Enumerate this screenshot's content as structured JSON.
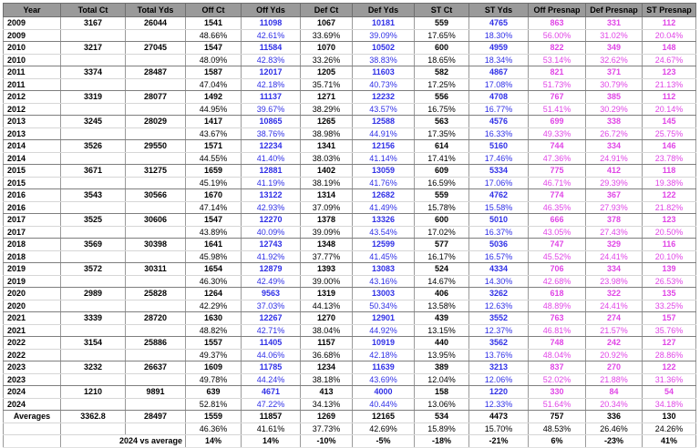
{
  "headers": [
    "Year",
    "Total Ct",
    "Total Yds",
    "Off Ct",
    "Off Yds",
    "Def Ct",
    "Def Yds",
    "ST Ct",
    "ST Yds",
    "Off Presnap",
    "Def Presnap",
    "ST Presnap"
  ],
  "years": [
    {
      "year": "2009",
      "total_ct": "3167",
      "total_yds": "26044",
      "off_ct": "1541",
      "off_yds": "11098",
      "def_ct": "1067",
      "def_yds": "10181",
      "st_ct": "559",
      "st_yds": "4765",
      "off_presnap": "863",
      "def_presnap": "331",
      "st_presnap": "112",
      "p_off_ct": "48.66%",
      "p_off_yds": "42.61%",
      "p_def_ct": "33.69%",
      "p_def_yds": "39.09%",
      "p_st_ct": "17.65%",
      "p_st_yds": "18.30%",
      "p_off_presnap": "56.00%",
      "p_def_presnap": "31.02%",
      "p_st_presnap": "20.04%"
    },
    {
      "year": "2010",
      "total_ct": "3217",
      "total_yds": "27045",
      "off_ct": "1547",
      "off_yds": "11584",
      "def_ct": "1070",
      "def_yds": "10502",
      "st_ct": "600",
      "st_yds": "4959",
      "off_presnap": "822",
      "def_presnap": "349",
      "st_presnap": "148",
      "p_off_ct": "48.09%",
      "p_off_yds": "42.83%",
      "p_def_ct": "33.26%",
      "p_def_yds": "38.83%",
      "p_st_ct": "18.65%",
      "p_st_yds": "18.34%",
      "p_off_presnap": "53.14%",
      "p_def_presnap": "32.62%",
      "p_st_presnap": "24.67%"
    },
    {
      "year": "2011",
      "total_ct": "3374",
      "total_yds": "28487",
      "off_ct": "1587",
      "off_yds": "12017",
      "def_ct": "1205",
      "def_yds": "11603",
      "st_ct": "582",
      "st_yds": "4867",
      "off_presnap": "821",
      "def_presnap": "371",
      "st_presnap": "123",
      "p_off_ct": "47.04%",
      "p_off_yds": "42.18%",
      "p_def_ct": "35.71%",
      "p_def_yds": "40.73%",
      "p_st_ct": "17.25%",
      "p_st_yds": "17.08%",
      "p_off_presnap": "51.73%",
      "p_def_presnap": "30.79%",
      "p_st_presnap": "21.13%"
    },
    {
      "year": "2012",
      "total_ct": "3319",
      "total_yds": "28077",
      "off_ct": "1492",
      "off_yds": "11137",
      "def_ct": "1271",
      "def_yds": "12232",
      "st_ct": "556",
      "st_yds": "4708",
      "off_presnap": "767",
      "def_presnap": "385",
      "st_presnap": "112",
      "p_off_ct": "44.95%",
      "p_off_yds": "39.67%",
      "p_def_ct": "38.29%",
      "p_def_yds": "43.57%",
      "p_st_ct": "16.75%",
      "p_st_yds": "16.77%",
      "p_off_presnap": "51.41%",
      "p_def_presnap": "30.29%",
      "p_st_presnap": "20.14%"
    },
    {
      "year": "2013",
      "total_ct": "3245",
      "total_yds": "28029",
      "off_ct": "1417",
      "off_yds": "10865",
      "def_ct": "1265",
      "def_yds": "12588",
      "st_ct": "563",
      "st_yds": "4576",
      "off_presnap": "699",
      "def_presnap": "338",
      "st_presnap": "145",
      "p_off_ct": "43.67%",
      "p_off_yds": "38.76%",
      "p_def_ct": "38.98%",
      "p_def_yds": "44.91%",
      "p_st_ct": "17.35%",
      "p_st_yds": "16.33%",
      "p_off_presnap": "49.33%",
      "p_def_presnap": "26.72%",
      "p_st_presnap": "25.75%"
    },
    {
      "year": "2014",
      "total_ct": "3526",
      "total_yds": "29550",
      "off_ct": "1571",
      "off_yds": "12234",
      "def_ct": "1341",
      "def_yds": "12156",
      "st_ct": "614",
      "st_yds": "5160",
      "off_presnap": "744",
      "def_presnap": "334",
      "st_presnap": "146",
      "p_off_ct": "44.55%",
      "p_off_yds": "41.40%",
      "p_def_ct": "38.03%",
      "p_def_yds": "41.14%",
      "p_st_ct": "17.41%",
      "p_st_yds": "17.46%",
      "p_off_presnap": "47.36%",
      "p_def_presnap": "24.91%",
      "p_st_presnap": "23.78%"
    },
    {
      "year": "2015",
      "total_ct": "3671",
      "total_yds": "31275",
      "off_ct": "1659",
      "off_yds": "12881",
      "def_ct": "1402",
      "def_yds": "13059",
      "st_ct": "609",
      "st_yds": "5334",
      "off_presnap": "775",
      "def_presnap": "412",
      "st_presnap": "118",
      "p_off_ct": "45.19%",
      "p_off_yds": "41.19%",
      "p_def_ct": "38.19%",
      "p_def_yds": "41.76%",
      "p_st_ct": "16.59%",
      "p_st_yds": "17.06%",
      "p_off_presnap": "46.71%",
      "p_def_presnap": "29.39%",
      "p_st_presnap": "19.38%"
    },
    {
      "year": "2016",
      "total_ct": "3543",
      "total_yds": "30566",
      "off_ct": "1670",
      "off_yds": "13122",
      "def_ct": "1314",
      "def_yds": "12682",
      "st_ct": "559",
      "st_yds": "4762",
      "off_presnap": "774",
      "def_presnap": "367",
      "st_presnap": "122",
      "p_off_ct": "47.14%",
      "p_off_yds": "42.93%",
      "p_def_ct": "37.09%",
      "p_def_yds": "41.49%",
      "p_st_ct": "15.78%",
      "p_st_yds": "15.58%",
      "p_off_presnap": "46.35%",
      "p_def_presnap": "27.93%",
      "p_st_presnap": "21.82%"
    },
    {
      "year": "2017",
      "total_ct": "3525",
      "total_yds": "30606",
      "off_ct": "1547",
      "off_yds": "12270",
      "def_ct": "1378",
      "def_yds": "13326",
      "st_ct": "600",
      "st_yds": "5010",
      "off_presnap": "666",
      "def_presnap": "378",
      "st_presnap": "123",
      "p_off_ct": "43.89%",
      "p_off_yds": "40.09%",
      "p_def_ct": "39.09%",
      "p_def_yds": "43.54%",
      "p_st_ct": "17.02%",
      "p_st_yds": "16.37%",
      "p_off_presnap": "43.05%",
      "p_def_presnap": "27.43%",
      "p_st_presnap": "20.50%"
    },
    {
      "year": "2018",
      "total_ct": "3569",
      "total_yds": "30398",
      "off_ct": "1641",
      "off_yds": "12743",
      "def_ct": "1348",
      "def_yds": "12599",
      "st_ct": "577",
      "st_yds": "5036",
      "off_presnap": "747",
      "def_presnap": "329",
      "st_presnap": "116",
      "p_off_ct": "45.98%",
      "p_off_yds": "41.92%",
      "p_def_ct": "37.77%",
      "p_def_yds": "41.45%",
      "p_st_ct": "16.17%",
      "p_st_yds": "16.57%",
      "p_off_presnap": "45.52%",
      "p_def_presnap": "24.41%",
      "p_st_presnap": "20.10%"
    },
    {
      "year": "2019",
      "total_ct": "3572",
      "total_yds": "30311",
      "off_ct": "1654",
      "off_yds": "12879",
      "def_ct": "1393",
      "def_yds": "13083",
      "st_ct": "524",
      "st_yds": "4334",
      "off_presnap": "706",
      "def_presnap": "334",
      "st_presnap": "139",
      "p_off_ct": "46.30%",
      "p_off_yds": "42.49%",
      "p_def_ct": "39.00%",
      "p_def_yds": "43.16%",
      "p_st_ct": "14.67%",
      "p_st_yds": "14.30%",
      "p_off_presnap": "42.68%",
      "p_def_presnap": "23.98%",
      "p_st_presnap": "26.53%"
    },
    {
      "year": "2020",
      "total_ct": "2989",
      "total_yds": "25828",
      "off_ct": "1264",
      "off_yds": "9563",
      "def_ct": "1319",
      "def_yds": "13003",
      "st_ct": "406",
      "st_yds": "3262",
      "off_presnap": "618",
      "def_presnap": "322",
      "st_presnap": "135",
      "p_off_ct": "42.29%",
      "p_off_yds": "37.03%",
      "p_def_ct": "44.13%",
      "p_def_yds": "50.34%",
      "p_st_ct": "13.58%",
      "p_st_yds": "12.63%",
      "p_off_presnap": "48.89%",
      "p_def_presnap": "24.41%",
      "p_st_presnap": "33.25%"
    },
    {
      "year": "2021",
      "total_ct": "3339",
      "total_yds": "28720",
      "off_ct": "1630",
      "off_yds": "12267",
      "def_ct": "1270",
      "def_yds": "12901",
      "st_ct": "439",
      "st_yds": "3552",
      "off_presnap": "763",
      "def_presnap": "274",
      "st_presnap": "157",
      "p_off_ct": "48.82%",
      "p_off_yds": "42.71%",
      "p_def_ct": "38.04%",
      "p_def_yds": "44.92%",
      "p_st_ct": "13.15%",
      "p_st_yds": "12.37%",
      "p_off_presnap": "46.81%",
      "p_def_presnap": "21.57%",
      "p_st_presnap": "35.76%"
    },
    {
      "year": "2022",
      "total_ct": "3154",
      "total_yds": "25886",
      "off_ct": "1557",
      "off_yds": "11405",
      "def_ct": "1157",
      "def_yds": "10919",
      "st_ct": "440",
      "st_yds": "3562",
      "off_presnap": "748",
      "def_presnap": "242",
      "st_presnap": "127",
      "p_off_ct": "49.37%",
      "p_off_yds": "44.06%",
      "p_def_ct": "36.68%",
      "p_def_yds": "42.18%",
      "p_st_ct": "13.95%",
      "p_st_yds": "13.76%",
      "p_off_presnap": "48.04%",
      "p_def_presnap": "20.92%",
      "p_st_presnap": "28.86%"
    },
    {
      "year": "2023",
      "total_ct": "3232",
      "total_yds": "26637",
      "off_ct": "1609",
      "off_yds": "11785",
      "def_ct": "1234",
      "def_yds": "11639",
      "st_ct": "389",
      "st_yds": "3213",
      "off_presnap": "837",
      "def_presnap": "270",
      "st_presnap": "122",
      "p_off_ct": "49.78%",
      "p_off_yds": "44.24%",
      "p_def_ct": "38.18%",
      "p_def_yds": "43.69%",
      "p_st_ct": "12.04%",
      "p_st_yds": "12.06%",
      "p_off_presnap": "52.02%",
      "p_def_presnap": "21.88%",
      "p_st_presnap": "31.36%"
    },
    {
      "year": "2024",
      "total_ct": "1210",
      "total_yds": "9891",
      "off_ct": "639",
      "off_yds": "4671",
      "def_ct": "413",
      "def_yds": "4000",
      "st_ct": "158",
      "st_yds": "1220",
      "off_presnap": "330",
      "def_presnap": "84",
      "st_presnap": "54",
      "p_off_ct": "52.81%",
      "p_off_yds": "47.22%",
      "p_def_ct": "34.13%",
      "p_def_yds": "40.44%",
      "p_st_ct": "13.06%",
      "p_st_yds": "12.33%",
      "p_off_presnap": "51.64%",
      "p_def_presnap": "20.34%",
      "p_st_presnap": "34.18%"
    }
  ],
  "averages": {
    "label": "Averages",
    "total_ct": "3362.8",
    "total_yds": "28497",
    "off_ct": "1559",
    "off_yds": "11857",
    "def_ct": "1269",
    "def_yds": "12165",
    "st_ct": "534",
    "st_yds": "4473",
    "off_presnap": "757",
    "def_presnap": "336",
    "st_presnap": "130",
    "p_off_ct": "46.36%",
    "p_off_yds": "41.61%",
    "p_def_ct": "37.73%",
    "p_def_yds": "42.69%",
    "p_st_ct": "15.89%",
    "p_st_yds": "15.70%",
    "p_off_presnap": "48.53%",
    "p_def_presnap": "26.46%",
    "p_st_presnap": "24.26%"
  },
  "vs_row": {
    "label": "2024 vs average",
    "off_ct": "14%",
    "off_yds": "14%",
    "def_ct": "-10%",
    "def_yds": "-5%",
    "st_ct": "-18%",
    "st_yds": "-21%",
    "off_presnap": "6%",
    "def_presnap": "-23%",
    "st_presnap": "41%"
  },
  "colors": {
    "header_bg": "#9a9a9a",
    "yards": "#2f2fe6",
    "presnap": "#e045e6"
  }
}
